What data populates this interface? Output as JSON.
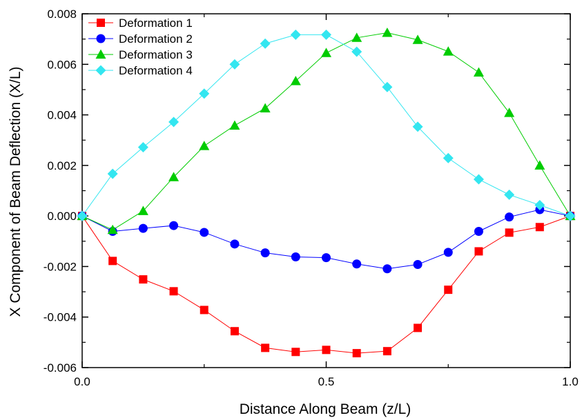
{
  "chart_data": {
    "type": "line",
    "title": "",
    "xlabel": "Distance Along Beam (z/L)",
    "ylabel": "X Component of Beam Deflection (X/L)",
    "xlim": [
      0.0,
      1.0
    ],
    "ylim": [
      -0.006,
      0.008
    ],
    "xticks": [
      0.0,
      0.5,
      1.0
    ],
    "xtick_labels": [
      "0.0",
      "0.5",
      "1.0"
    ],
    "yticks": [
      -0.006,
      -0.004,
      -0.002,
      0.0,
      0.002,
      0.004,
      0.006,
      0.008
    ],
    "ytick_labels": [
      "-0.006",
      "-0.004",
      "-0.002",
      "0.000",
      "0.002",
      "0.004",
      "0.006",
      "0.008"
    ],
    "grid": false,
    "legend_position": "top-left",
    "x": [
      0.0,
      0.0625,
      0.125,
      0.1875,
      0.25,
      0.3125,
      0.375,
      0.4375,
      0.5,
      0.5625,
      0.625,
      0.6875,
      0.75,
      0.8125,
      0.875,
      0.9375,
      1.0
    ],
    "series": [
      {
        "name": "Deformation 1",
        "color": "#ff0000",
        "marker": "square",
        "values": [
          0.0,
          -0.00178,
          -0.00251,
          -0.00298,
          -0.00372,
          -0.00456,
          -0.00522,
          -0.00538,
          -0.0053,
          -0.00543,
          -0.00535,
          -0.00443,
          -0.00292,
          -0.0014,
          -0.00066,
          -0.00044,
          0.0
        ]
      },
      {
        "name": "Deformation 2",
        "color": "#0000ff",
        "marker": "circle",
        "values": [
          0.0,
          -0.00061,
          -0.00049,
          -0.00038,
          -0.00065,
          -0.00111,
          -0.00146,
          -0.00162,
          -0.00165,
          -0.0019,
          -0.00209,
          -0.00192,
          -0.00144,
          -0.00061,
          -4e-05,
          0.00025,
          0.0
        ]
      },
      {
        "name": "Deformation 3",
        "color": "#00cc00",
        "marker": "triangle",
        "values": [
          0.0,
          -0.00055,
          0.0002,
          0.00154,
          0.00277,
          0.00358,
          0.00426,
          0.00534,
          0.00645,
          0.00705,
          0.00725,
          0.00697,
          0.00651,
          0.00568,
          0.00408,
          0.002,
          0.0
        ]
      },
      {
        "name": "Deformation 4",
        "color": "#33e6f0",
        "marker": "diamond",
        "values": [
          0.0,
          0.00167,
          0.00272,
          0.00372,
          0.00484,
          0.006,
          0.00682,
          0.00717,
          0.00717,
          0.0065,
          0.0051,
          0.00353,
          0.00229,
          0.00145,
          0.00084,
          0.00043,
          0.0
        ]
      }
    ]
  }
}
